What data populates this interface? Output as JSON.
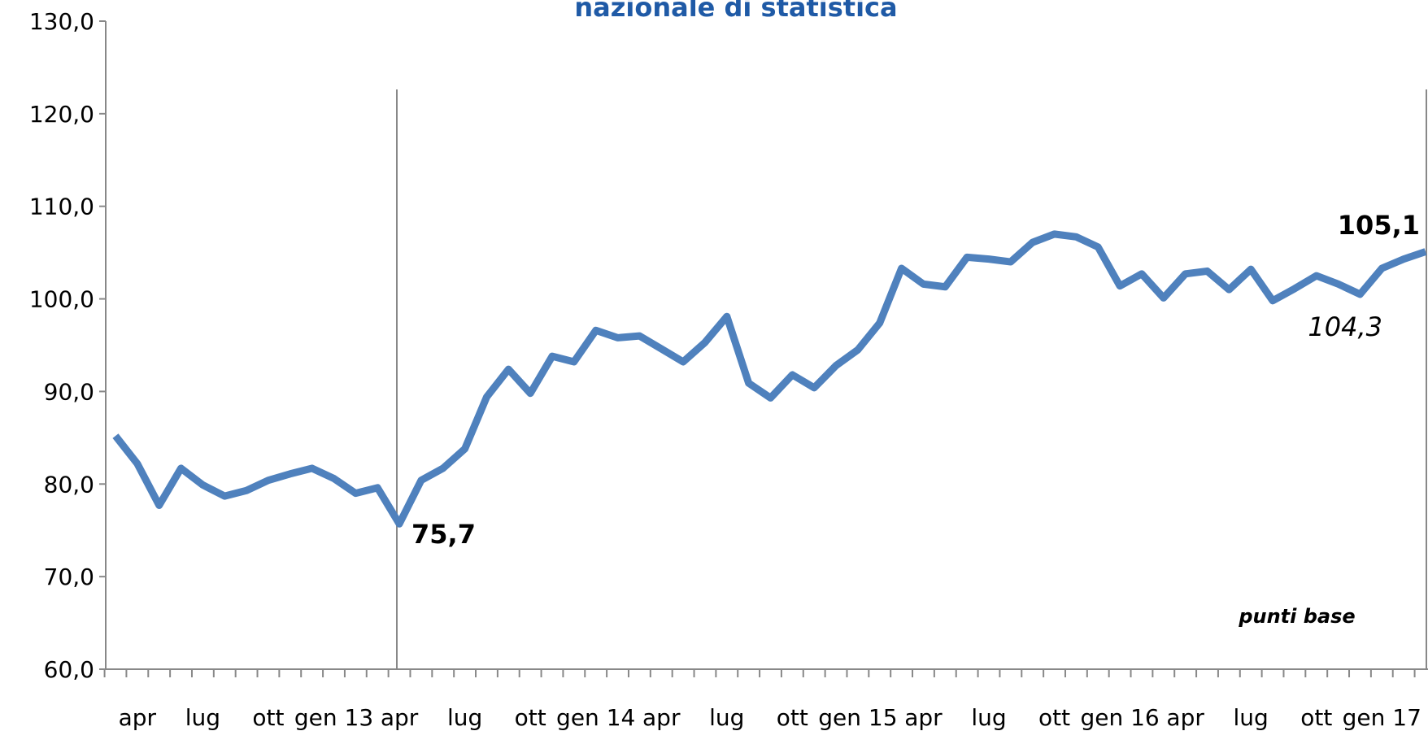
{
  "chart_data": {
    "type": "line",
    "title": "nazionale di statistica",
    "categories": [
      null,
      "apr",
      null,
      null,
      "lug",
      null,
      null,
      "ott",
      null,
      null,
      "gen 13",
      null,
      null,
      "apr",
      null,
      null,
      "lug",
      null,
      null,
      "ott",
      null,
      null,
      "gen 14",
      null,
      null,
      "apr",
      null,
      null,
      "lug",
      null,
      null,
      "ott",
      null,
      null,
      "gen 15",
      null,
      null,
      "apr",
      null,
      null,
      "lug",
      null,
      null,
      "ott",
      null,
      null,
      "gen 16",
      null,
      null,
      "apr",
      null,
      null,
      "lug",
      null,
      null,
      "ott",
      null,
      null,
      "gen 17",
      null,
      null
    ],
    "series": [
      {
        "name": null,
        "color": "#4f81bd",
        "values": [
          85.2,
          82.2,
          77.7,
          81.7,
          79.9,
          78.7,
          79.3,
          80.4,
          81.1,
          81.7,
          80.6,
          79.0,
          79.6,
          75.7,
          80.4,
          81.7,
          83.8,
          89.4,
          92.4,
          89.8,
          93.8,
          93.2,
          96.6,
          95.8,
          96.0,
          94.6,
          93.2,
          95.3,
          98.1,
          90.9,
          89.3,
          91.8,
          90.4,
          92.8,
          94.5,
          97.4,
          103.3,
          101.6,
          101.3,
          104.5,
          104.3,
          104.0,
          106.1,
          107.0,
          106.7,
          105.6,
          101.4,
          102.7,
          100.1,
          102.7,
          103.0,
          101.0,
          103.2,
          99.8,
          101.1,
          102.5,
          101.6,
          100.5,
          103.3,
          104.3,
          105.1
        ],
        "value_labels": [
          null,
          null,
          null,
          null,
          null,
          null,
          null,
          null,
          null,
          null,
          null,
          null,
          null,
          "75,7",
          null,
          null,
          null,
          null,
          null,
          null,
          null,
          null,
          null,
          null,
          null,
          null,
          null,
          null,
          null,
          null,
          null,
          null,
          null,
          null,
          null,
          null,
          null,
          null,
          null,
          null,
          null,
          null,
          null,
          null,
          null,
          null,
          null,
          null,
          null,
          null,
          null,
          null,
          null,
          null,
          null,
          null,
          null,
          null,
          null,
          "104,3",
          "105,1"
        ]
      }
    ],
    "ylim": [
      60,
      130
    ],
    "yticks": [
      {
        "value": 60,
        "label": "60,0"
      },
      {
        "value": 70,
        "label": "70,0"
      },
      {
        "value": 80,
        "label": "80,0"
      },
      {
        "value": 90,
        "label": "90,0"
      },
      {
        "value": 100,
        "label": "100,0"
      },
      {
        "value": 110,
        "label": "110,0"
      },
      {
        "value": 120,
        "label": "120,0"
      },
      {
        "value": 130,
        "label": "130,0"
      }
    ],
    "annotation": "punti base",
    "grid": false
  }
}
